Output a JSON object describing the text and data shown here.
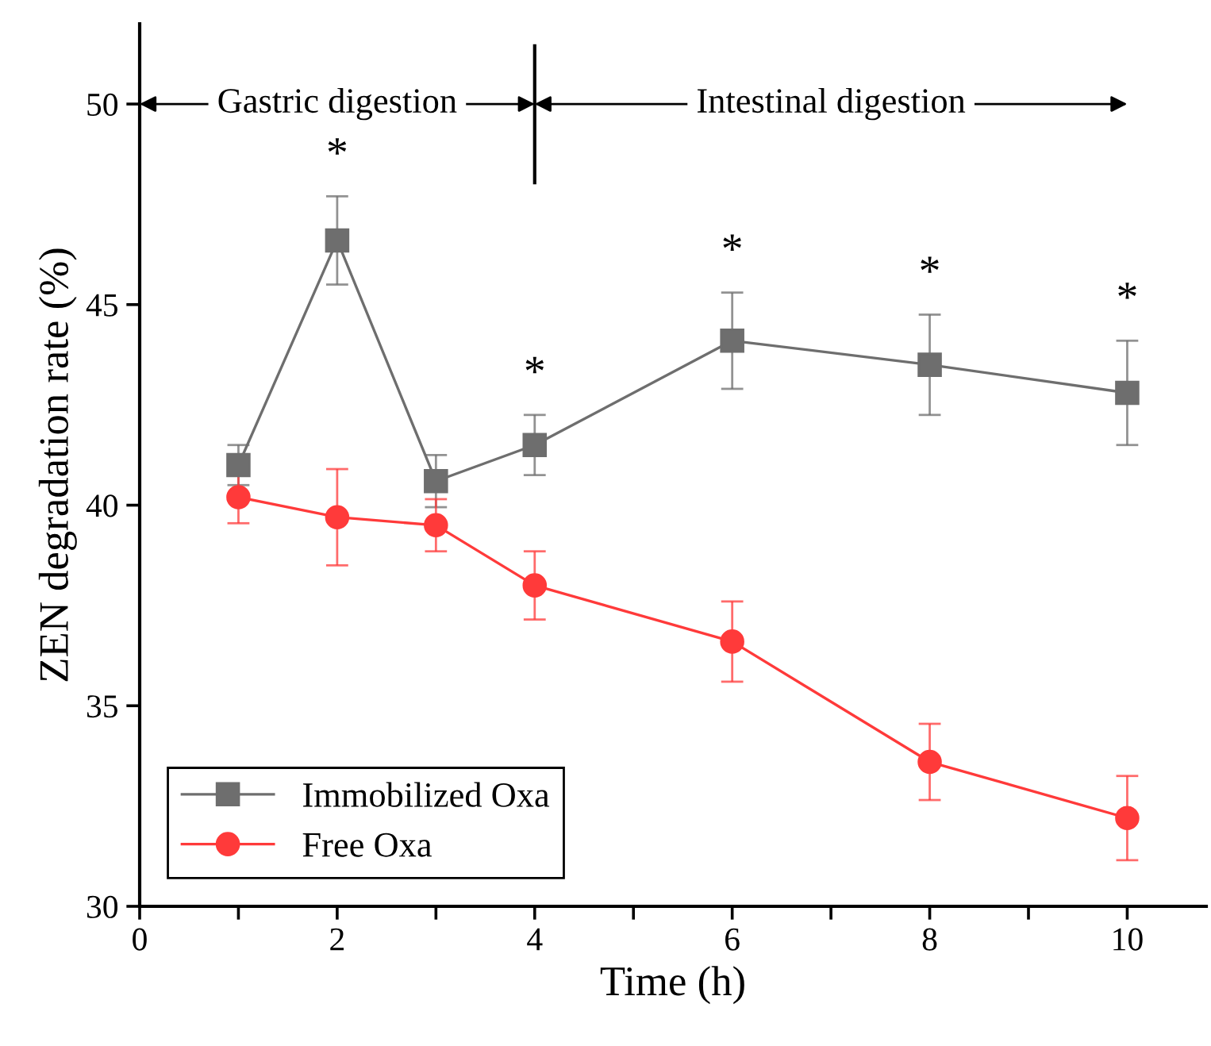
{
  "chart_data": {
    "type": "line",
    "xlabel": "Time (h)",
    "ylabel": "ZEN degradation rate (%)",
    "x": [
      1,
      2,
      3,
      4,
      6,
      8,
      10
    ],
    "xlim": [
      0,
      10.8
    ],
    "ylim": [
      30,
      52
    ],
    "xticks": [
      0,
      {
        "value": 1,
        "label": null
      },
      2,
      {
        "value": 3,
        "label": null
      },
      4,
      {
        "value": 5,
        "label": null
      },
      6,
      {
        "value": 7,
        "label": null
      },
      8,
      {
        "value": 9,
        "label": null
      },
      10
    ],
    "yticks": [
      30,
      35,
      40,
      45,
      50
    ],
    "series": [
      {
        "name": "Immobilized Oxa",
        "color": "#6e6e6e",
        "marker": "square",
        "values": [
          41.0,
          46.6,
          40.6,
          41.5,
          44.1,
          43.5,
          42.8
        ],
        "errors": [
          0.5,
          1.1,
          0.65,
          0.75,
          1.2,
          1.25,
          1.3
        ]
      },
      {
        "name": "Free Oxa",
        "color": "#ff3a3a",
        "marker": "circle",
        "values": [
          40.2,
          39.7,
          39.5,
          38.0,
          36.6,
          33.6,
          32.2
        ],
        "errors": [
          0.65,
          1.2,
          0.65,
          0.85,
          1.0,
          0.95,
          1.05
        ]
      }
    ],
    "ref_lines": [
      {
        "axis": "x",
        "value": 4,
        "color": "#000000"
      }
    ],
    "annotations": [
      {
        "text": "Gastric digestion",
        "x": 4,
        "y": 50
      },
      {
        "text": "Intestinal digestion",
        "x": 4,
        "y": 50
      },
      "*",
      "*",
      "*",
      "*",
      "*"
    ],
    "legend": "bottom left",
    "grid": false,
    "line_style": "solid"
  }
}
